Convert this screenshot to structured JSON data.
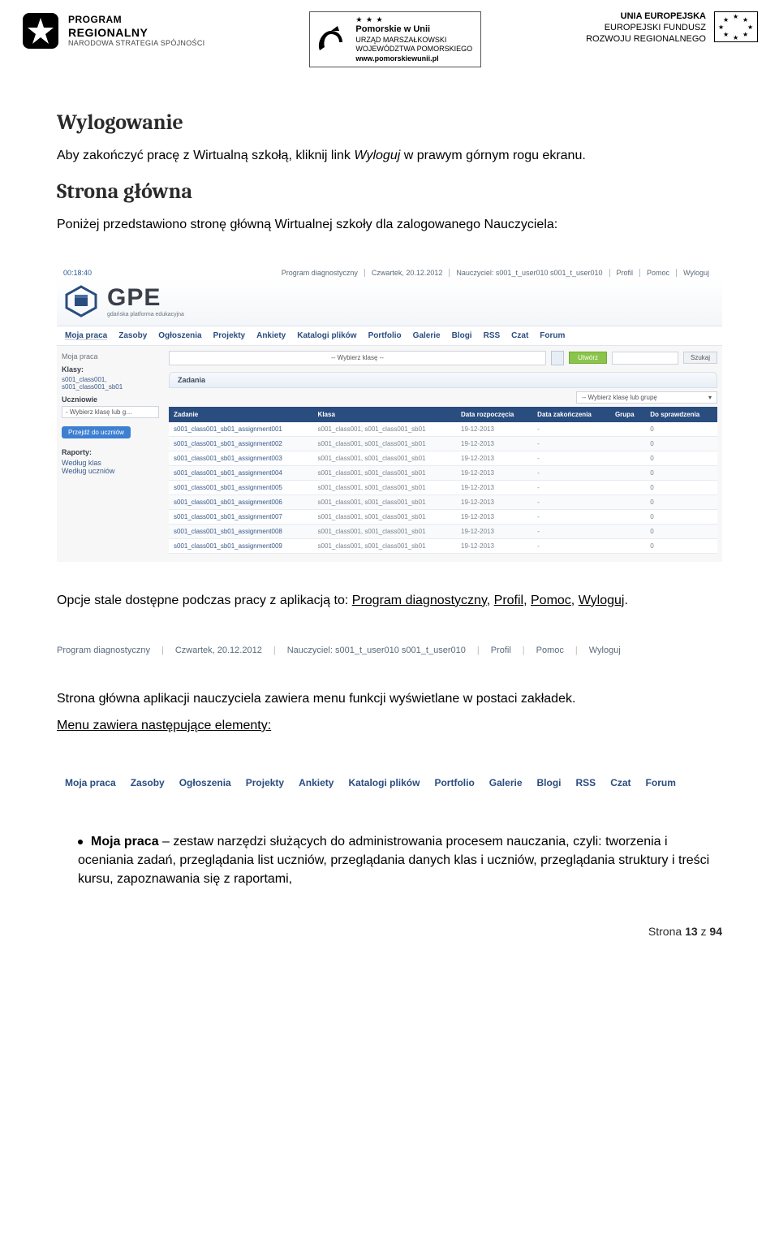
{
  "logos": {
    "left": {
      "l1": "PROGRAM",
      "l2": "REGIONALNY",
      "l3": "NARODOWA STRATEGIA SPÓJNOŚCI"
    },
    "mid": {
      "t1": "Pomorskie w Unii",
      "t2": "URZĄD MARSZAŁKOWSKI",
      "t3": "WOJEWÓDZTWA POMORSKIEGO",
      "t4": "www.pomorskiewunii.pl",
      "stars": "★ ★ ★"
    },
    "right": {
      "t1": "UNIA EUROPEJSKA",
      "t2": "EUROPEJSKI FUNDUSZ",
      "t3": "ROZWOJU REGIONALNEGO"
    }
  },
  "doc": {
    "h1": "Wylogowanie",
    "p1a": "Aby zakończyć pracę z Wirtualną szkołą, kliknij link ",
    "p1i": "Wyloguj",
    "p1b": " w prawym górnym rogu ekranu.",
    "h2": "Strona główna",
    "p2": "Poniżej przedstawiono stronę główną Wirtualnej szkoły dla zalogowanego Nauczyciela:",
    "p3a": "Opcje stale dostępne podczas pracy z aplikacją to: ",
    "opts": [
      "Program diagnostyczny",
      "Profil",
      "Pomoc",
      "Wyloguj"
    ],
    "p4": "Strona główna aplikacji nauczyciela zawiera menu funkcji wyświetlane w postaci zakładek.",
    "p5": "Menu zawiera następujące elementy:",
    "bullet_lead": "Moja praca",
    "bullet_body": " – zestaw narzędzi służących do administrowania procesem nauczania, czyli: tworzenia i oceniania zadań, przeglądania list uczniów, przeglądania danych klas i uczniów, przeglądania struktury i treści kursu, zapoznawania się z raportami,"
  },
  "screenshot": {
    "topbar": {
      "time": "00:18:40",
      "items": [
        "Program diagnostyczny",
        "Czwartek, 20.12.2012",
        "Nauczyciel: s001_t_user010 s001_t_user010",
        "Profil",
        "Pomoc",
        "Wyloguj"
      ]
    },
    "brand": {
      "name": "GPE",
      "sub": "gdańska platforma edukacyjna"
    },
    "nav": [
      "Moja praca",
      "Zasoby",
      "Ogłoszenia",
      "Projekty",
      "Ankiety",
      "Katalogi plików",
      "Portfolio",
      "Galerie",
      "Blogi",
      "RSS",
      "Czat",
      "Forum"
    ],
    "side": {
      "crumb": "Moja praca",
      "klasy_label": "Klasy:",
      "klasy_val": "s001_class001,\ns001_class001_sb01",
      "uczniowie_label": "Uczniowie",
      "uczniowie_sel": "- Wybierz klasę lub g…",
      "btn": "Przejdź do uczniów",
      "raporty_label": "Raporty:",
      "raporty_1": "Według klas",
      "raporty_2": "Według uczniów"
    },
    "main": {
      "sel1": "-- Wybierz klasę --",
      "btn_utworz": "Utwórz",
      "btn_szukaj": "Szukaj",
      "zadania": "Zadania",
      "sel2": "-- Wybierz klasę lub grupę",
      "columns": [
        "Zadanie",
        "Klasa",
        "Data rozpoczęcia",
        "Data zakończenia",
        "Grupa",
        "Do sprawdzenia"
      ],
      "rows": [
        [
          "s001_class001_sb01_assignment001",
          "s001_class001, s001_class001_sb01",
          "19-12-2013",
          "-",
          "",
          "0"
        ],
        [
          "s001_class001_sb01_assignment002",
          "s001_class001, s001_class001_sb01",
          "19-12-2013",
          "-",
          "",
          "0"
        ],
        [
          "s001_class001_sb01_assignment003",
          "s001_class001, s001_class001_sb01",
          "19-12-2013",
          "-",
          "",
          "0"
        ],
        [
          "s001_class001_sb01_assignment004",
          "s001_class001, s001_class001_sb01",
          "19-12-2013",
          "-",
          "",
          "0"
        ],
        [
          "s001_class001_sb01_assignment005",
          "s001_class001, s001_class001_sb01",
          "19-12-2013",
          "-",
          "",
          "0"
        ],
        [
          "s001_class001_sb01_assignment006",
          "s001_class001, s001_class001_sb01",
          "19-12-2013",
          "-",
          "",
          "0"
        ],
        [
          "s001_class001_sb01_assignment007",
          "s001_class001, s001_class001_sb01",
          "19-12-2013",
          "-",
          "",
          "0"
        ],
        [
          "s001_class001_sb01_assignment008",
          "s001_class001, s001_class001_sb01",
          "19-12-2013",
          "-",
          "",
          "0"
        ],
        [
          "s001_class001_sb01_assignment009",
          "s001_class001, s001_class001_sb01",
          "19-12-2013",
          "-",
          "",
          "0"
        ]
      ]
    }
  },
  "barshot1": [
    "Program diagnostyczny",
    "Czwartek, 20.12.2012",
    "Nauczyciel: s001_t_user010 s001_t_user010",
    "Profil",
    "Pomoc",
    "Wyloguj"
  ],
  "barshot2": [
    "Moja praca",
    "Zasoby",
    "Ogłoszenia",
    "Projekty",
    "Ankiety",
    "Katalogi plików",
    "Portfolio",
    "Galerie",
    "Blogi",
    "RSS",
    "Czat",
    "Forum"
  ],
  "footer": {
    "label": "Strona ",
    "n": "13",
    "of": " z ",
    "total": "94"
  },
  "colors": {
    "nav_blue": "#2a4d80",
    "link": "#000000",
    "thead_bg": "#2a4d80",
    "green_btn": "#8bc44a",
    "blue_btn": "#3d7fd1"
  }
}
